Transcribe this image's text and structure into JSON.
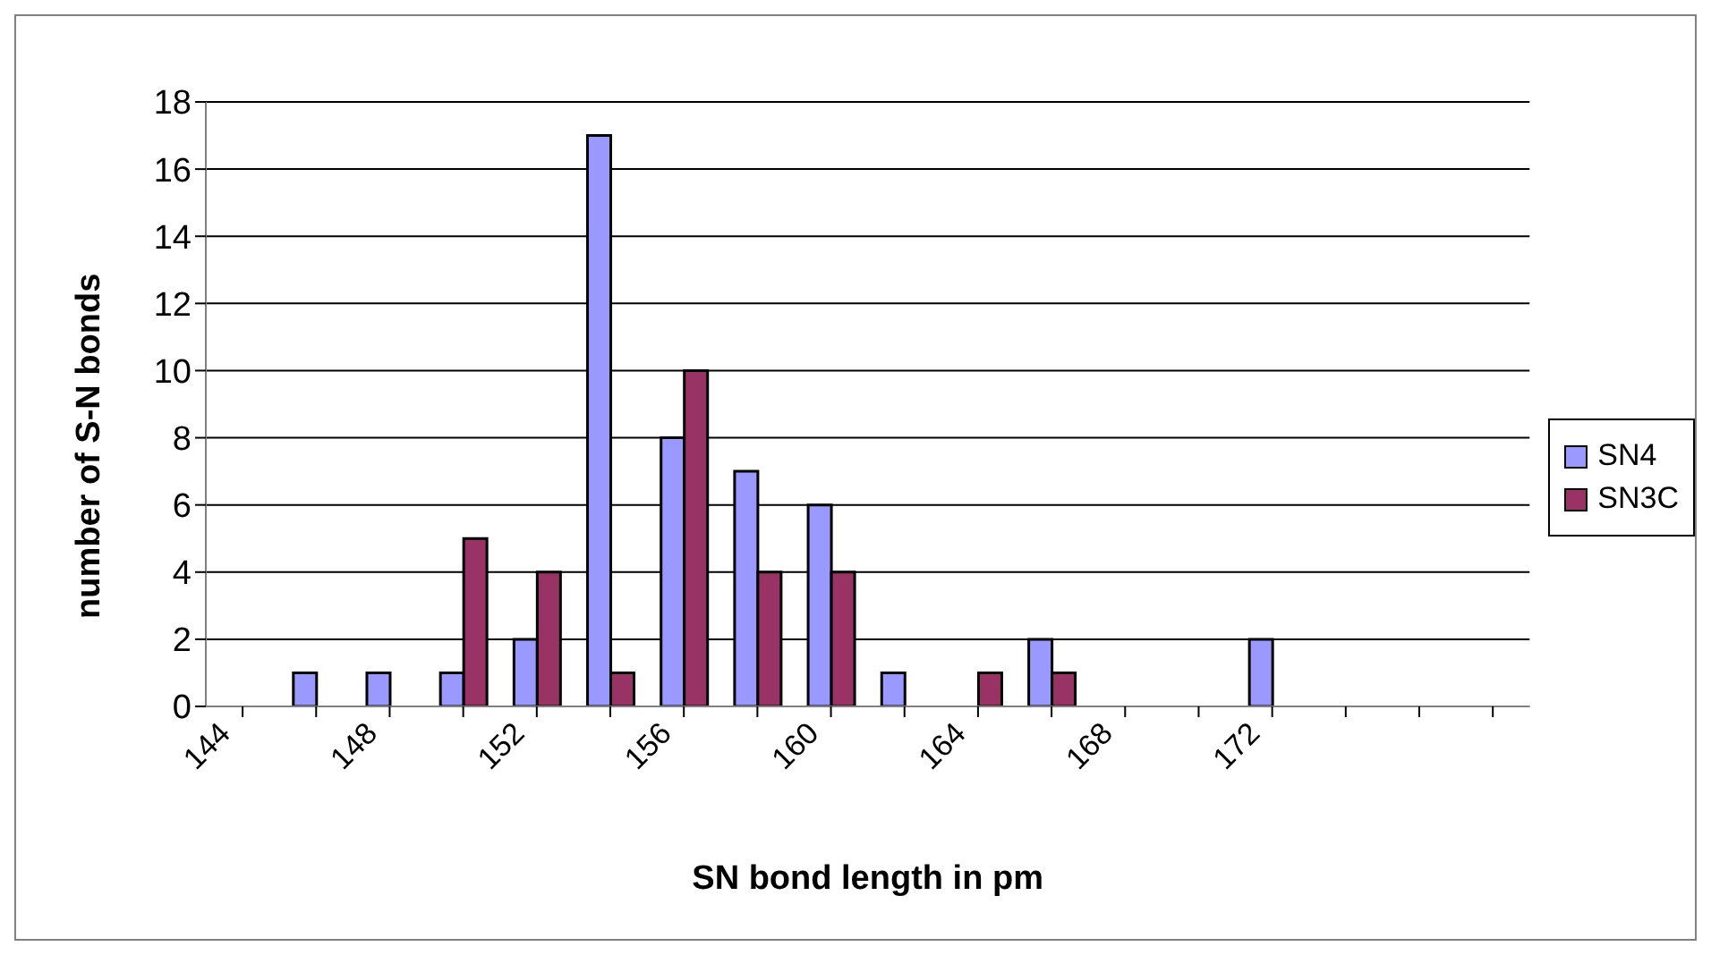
{
  "chart_data": {
    "type": "bar",
    "xlabel": "SN bond length in pm",
    "ylabel": "number of S-N bonds",
    "categories": [
      "144",
      null,
      "148",
      null,
      "152",
      null,
      "156",
      null,
      "160",
      null,
      "164",
      null,
      "168",
      null,
      "172",
      null,
      null,
      null
    ],
    "series": [
      {
        "name": "SN4",
        "color": "#9999ff",
        "values": [
          0,
          1,
          1,
          1,
          2,
          17,
          8,
          7,
          6,
          1,
          0,
          2,
          0,
          0,
          2,
          0,
          0,
          0
        ]
      },
      {
        "name": "SN3C",
        "color": "#993366",
        "values": [
          0,
          0,
          0,
          5,
          4,
          1,
          10,
          4,
          4,
          0,
          1,
          1,
          0,
          0,
          0,
          0,
          0,
          0
        ]
      }
    ],
    "ylim": [
      0,
      18
    ],
    "yticks": [
      0,
      2,
      4,
      6,
      8,
      10,
      12,
      14,
      16,
      18
    ],
    "grid": "y",
    "legend": "right"
  }
}
